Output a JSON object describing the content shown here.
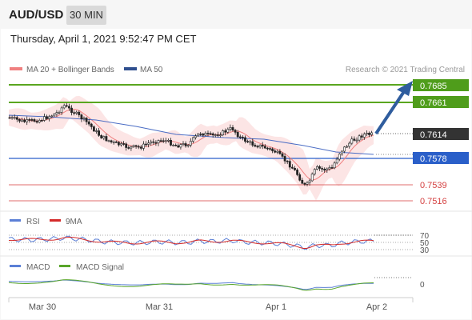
{
  "header": {
    "pair": "AUD/USD",
    "timeframe": "30 MIN"
  },
  "timestamp": "Thursday, April 1, 2021 9:52:47 PM CET",
  "legend": {
    "ma20_bb": "MA 20 + Bollinger Bands",
    "ma50": "MA 50",
    "credit": "Research © 2021 Trading Central"
  },
  "levels": {
    "r2": "0.7685",
    "r1": "0.7661",
    "current": "0.7614",
    "s1": "0.7578",
    "s2": "0.7539",
    "s3": "0.7516"
  },
  "rsi": {
    "label": "RSI",
    "ma_label": "9MA",
    "ticks": [
      "70",
      "50",
      "30"
    ]
  },
  "macd": {
    "label": "MACD",
    "signal_label": "MACD Signal",
    "tick": "0"
  },
  "xaxis": [
    "Mar 30",
    "Mar 31",
    "Apr 1",
    "Apr 2"
  ],
  "colors": {
    "resistance": "#5aa61f",
    "support": "#2a5fc9",
    "support_minor": "#e06c6c",
    "arrow": "#2f5d9e",
    "ma20": "#f08080",
    "ma50": "#4a6cc4",
    "rsi": "#5b7fd6",
    "rsi_ma": "#d42a2a",
    "macd": "#5b7fd6",
    "macd_signal": "#59a62b"
  },
  "chart_data": {
    "type": "candlestick",
    "series": [
      {
        "name": "MA 20 + Bollinger Bands"
      },
      {
        "name": "MA 50"
      }
    ],
    "closes": [
      0.7614
    ],
    "levels": [
      0.7685,
      0.7661,
      0.7614,
      0.7578,
      0.7539,
      0.7516
    ],
    "x_labels": [
      "Mar 30",
      "Mar 31",
      "Apr 1",
      "Apr 2"
    ]
  }
}
